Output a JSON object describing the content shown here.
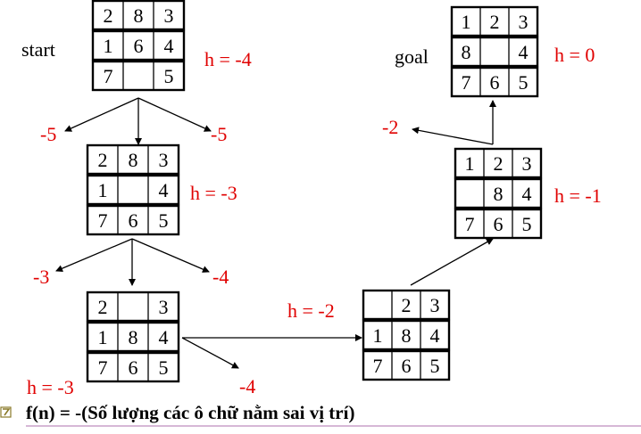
{
  "colors": {
    "heuristic": "#e00000",
    "text": "#000000",
    "rule": "#c8a0c8",
    "bullet": "#8a7a2a"
  },
  "icons": {
    "bullet": "bullet-icon"
  },
  "labels": {
    "start": "start",
    "goal": "goal"
  },
  "boards": [
    {
      "id": "start",
      "cells": [
        "2",
        "8",
        "3",
        "1",
        "6",
        "4",
        "7",
        "",
        "5"
      ],
      "h": "h = -4"
    },
    {
      "id": "level1",
      "cells": [
        "2",
        "8",
        "3",
        "1",
        "",
        "4",
        "7",
        "6",
        "5"
      ],
      "h": "h = -3"
    },
    {
      "id": "level2",
      "cells": [
        "2",
        "",
        "3",
        "1",
        "8",
        "4",
        "7",
        "6",
        "5"
      ],
      "h": "h = -3"
    },
    {
      "id": "right1",
      "cells": [
        "",
        "2",
        "3",
        "1",
        "8",
        "4",
        "7",
        "6",
        "5"
      ],
      "h": "h = -2"
    },
    {
      "id": "right2",
      "cells": [
        "1",
        "2",
        "3",
        "",
        "8",
        "4",
        "7",
        "6",
        "5"
      ],
      "h": "h = -1"
    },
    {
      "id": "goal",
      "cells": [
        "1",
        "2",
        "3",
        "8",
        "",
        "4",
        "7",
        "6",
        "5"
      ],
      "h": "h = 0"
    }
  ],
  "branch_values": {
    "start_left": "-5",
    "start_right": "-5",
    "level1_left": "-3",
    "level1_right": "-4",
    "level2_down": "-4",
    "right2_left": "-2"
  },
  "caption": "f(n) = -(Số lượng các ô chữ nằm sai vị trí)"
}
